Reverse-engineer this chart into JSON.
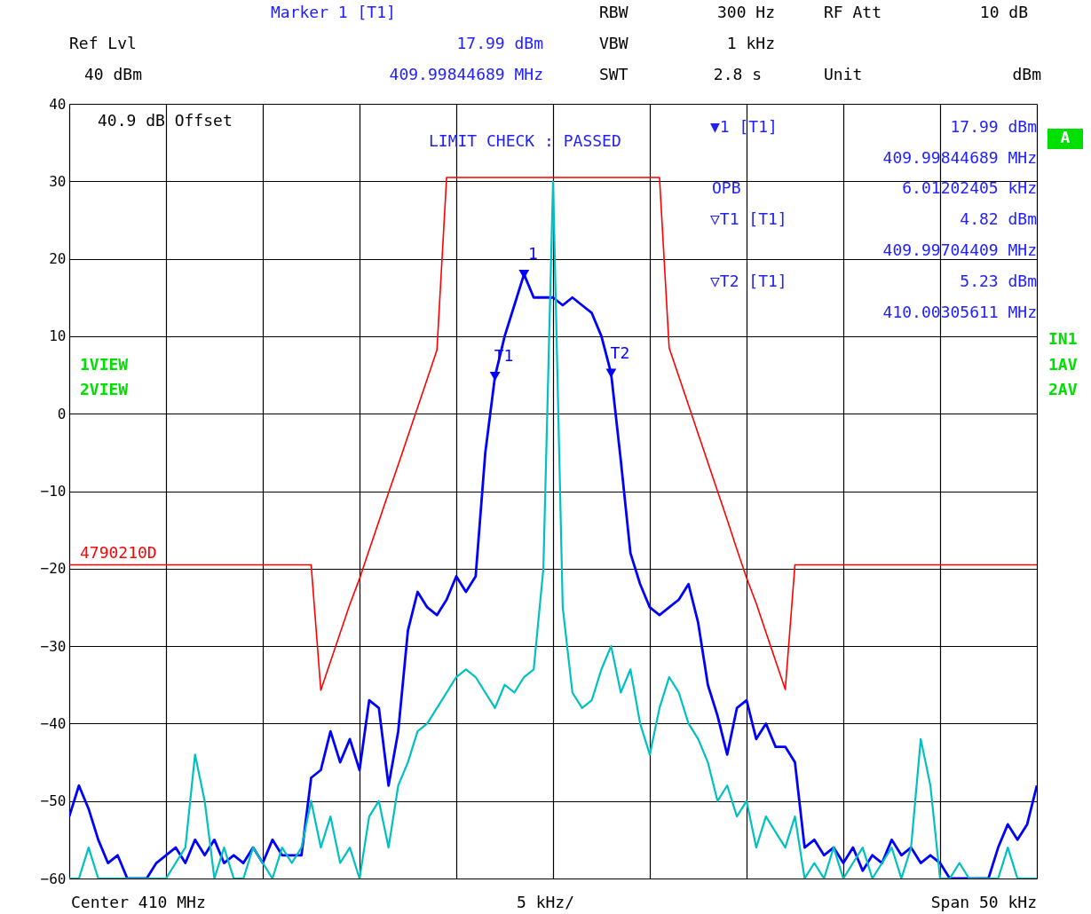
{
  "chart_data": {
    "type": "line",
    "categories": [
      null,
      null,
      null,
      null,
      null,
      null,
      null,
      null,
      null,
      null,
      null,
      null,
      null,
      null,
      null,
      null,
      null,
      null,
      null,
      null,
      null,
      null,
      null,
      null,
      null,
      null,
      null,
      null,
      null,
      null,
      null,
      null,
      null,
      null,
      null,
      null,
      null,
      null,
      null,
      null,
      null,
      null,
      null,
      null,
      null,
      null,
      null,
      null,
      null,
      null,
      null,
      null,
      null,
      null,
      null,
      null,
      null,
      null,
      null,
      null,
      null,
      null,
      null,
      null,
      null,
      null,
      null,
      null,
      null,
      null,
      null,
      null,
      null,
      null,
      null,
      null,
      null,
      null,
      null,
      null,
      null,
      null,
      null,
      null,
      null,
      null,
      null,
      null,
      null,
      null,
      null,
      null,
      null,
      null,
      null,
      null,
      null,
      null,
      null,
      null,
      null
    ],
    "ylim": [
      -60,
      40
    ],
    "yticks": [
      -60,
      -50,
      -40,
      -30,
      -20,
      -10,
      0,
      10,
      20,
      30,
      40
    ],
    "grid": true,
    "series": [
      {
        "type": "line",
        "color": "#0000ff",
        "values": [
          -52,
          -48,
          -51,
          -55,
          -58,
          -57,
          -60,
          -60,
          -60,
          -58,
          -57,
          -56,
          -58,
          -55,
          -57,
          -55,
          -58,
          -57,
          -58,
          -56,
          -58,
          -55,
          -57,
          -57,
          -57,
          -47,
          -46,
          -41,
          -45,
          -42,
          -46,
          -37,
          -38,
          -48,
          -41,
          -28,
          -23,
          -25,
          -26,
          -24,
          -21,
          -23,
          -21,
          -5,
          4.82,
          10,
          14,
          17.99,
          15,
          15,
          15,
          14,
          15,
          14,
          13,
          10,
          5.23,
          -6,
          -18,
          -22,
          -25,
          -26,
          -25,
          -24,
          -22,
          -27,
          -35,
          -39,
          -44,
          -38,
          -37,
          -42,
          -40,
          -43,
          -43,
          -45,
          -56,
          -55,
          -57,
          -56,
          -58,
          -56,
          -59,
          -57,
          -58,
          -55,
          -57,
          -56,
          -58,
          -57,
          -58,
          -60,
          -60,
          -60,
          -60,
          -60,
          -56,
          -53,
          -55,
          -53,
          -48
        ]
      },
      {
        "type": "line",
        "color": "#00c0c0",
        "values": [
          -60,
          -60,
          -56,
          -60,
          -60,
          -60,
          -60,
          -60,
          -60,
          -60,
          -60,
          -58,
          -56,
          -44,
          -50,
          -60,
          -56,
          -60,
          -60,
          -56,
          -58,
          -60,
          -56,
          -58,
          -56,
          -50,
          -56,
          -52,
          -58,
          -56,
          -60,
          -52,
          -50,
          -56,
          -48,
          -45,
          -41,
          -40,
          -38,
          -36,
          -34,
          -33,
          -34,
          -36,
          -38,
          -35,
          -36,
          -34,
          -33,
          -20,
          30,
          -25,
          -36,
          -38,
          -37,
          -33,
          -30,
          -36,
          -33,
          -40,
          -44,
          -38,
          -34,
          -36,
          -40,
          -42,
          -45,
          -50,
          -48,
          -52,
          -50,
          -56,
          -52,
          -54,
          -56,
          -52,
          -60,
          -58,
          -60,
          -56,
          -60,
          -58,
          -56,
          -60,
          -58,
          -56,
          -60,
          -56,
          -42,
          -48,
          -60,
          -60,
          -58,
          -60,
          -60,
          -60,
          -60,
          -56,
          -60,
          -60,
          -60
        ]
      },
      {
        "type": "line",
        "name": "4790210D",
        "color": "#ff0000",
        "values": [
          -19.5,
          -19.5,
          -19.5,
          -19.5,
          -19.5,
          -19.5,
          -19.5,
          -19.5,
          -19.5,
          -19.5,
          -19.5,
          -19.5,
          -19.5,
          -19.5,
          -19.5,
          -19.5,
          -19.5,
          -19.5,
          -19.5,
          -19.5,
          -19.5,
          -19.5,
          -19.5,
          -19.5,
          -19.5,
          -19.5,
          -35.7,
          -32.0,
          -28.3,
          -24.6,
          -21.3,
          -17.6,
          -13.9,
          -10.2,
          -6.6,
          -2.9,
          0.8,
          4.5,
          8.2,
          30.5,
          30.5,
          30.5,
          30.5,
          30.5,
          30.5,
          30.5,
          30.5,
          30.5,
          30.5,
          30.5,
          30.5,
          30.5,
          30.5,
          30.5,
          30.5,
          30.5,
          30.5,
          30.5,
          30.5,
          30.5,
          30.5,
          30.5,
          8.5,
          4.8,
          1.1,
          -2.6,
          -6.3,
          -10.0,
          -13.7,
          -17.5,
          -21.2,
          -24.5,
          -28.2,
          -31.9,
          -35.6,
          -19.5,
          -19.5,
          -19.5,
          -19.5,
          -19.5,
          -19.5,
          -19.5,
          -19.5,
          -19.5,
          -19.5,
          -19.5,
          -19.5,
          -19.5,
          -19.5,
          -19.5,
          -19.5,
          -19.5,
          -19.5,
          -19.5,
          -19.5,
          -19.5,
          -19.5,
          -19.5,
          -19.5,
          -19.5,
          -19.5
        ]
      },
      {
        "type": "scatter",
        "marker": "triangle",
        "color": "#0000ff",
        "values": [
          null,
          null,
          null,
          null,
          null,
          null,
          null,
          null,
          null,
          null,
          null,
          null,
          null,
          null,
          null,
          null,
          null,
          null,
          null,
          null,
          null,
          null,
          null,
          null,
          null,
          null,
          null,
          null,
          null,
          null,
          null,
          null,
          null,
          null,
          null,
          null,
          null,
          null,
          null,
          null,
          null,
          null,
          null,
          null,
          4.82,
          null,
          null,
          17.99,
          null,
          null,
          null,
          null,
          null,
          null,
          null,
          null,
          5.23,
          null,
          null,
          null,
          null,
          null,
          null,
          null,
          null,
          null,
          null,
          null,
          null,
          null,
          null,
          null,
          null,
          null,
          null,
          null,
          null,
          null,
          null,
          null,
          null,
          null,
          null,
          null,
          null,
          null,
          null,
          null,
          null,
          null,
          null,
          null,
          null,
          null,
          null,
          null,
          null,
          null,
          null,
          null,
          null
        ]
      }
    ],
    "annotations": [
      "T1",
      "1",
      "T2",
      "Marker 1 [T1]",
      "RBW",
      "300 Hz",
      "RF Att",
      "10 dB",
      "Ref Lvl",
      "17.99 dBm",
      "VBW",
      "1 kHz",
      "40 dBm",
      "409.99844689 MHz",
      "SWT",
      "2.8 s",
      "Unit",
      "dBm",
      "40.9 dB Offset",
      "LIMIT CHECK  :  PASSED",
      "▼1 [T1]",
      "17.99 dBm",
      "409.99844689 MHz",
      "OPB",
      "6.01202405 kHz",
      "▽T1 [T1]",
      "4.82 dBm",
      "409.99704409 MHz",
      "▽T2 [T1]",
      "5.23 dBm",
      "410.00305611 MHz",
      "1VIEW",
      "2VIEW",
      "IN1",
      "1AV",
      "2AV",
      "A",
      "Center 410 MHz",
      "5 kHz/",
      "Span 50 kHz"
    ]
  }
}
